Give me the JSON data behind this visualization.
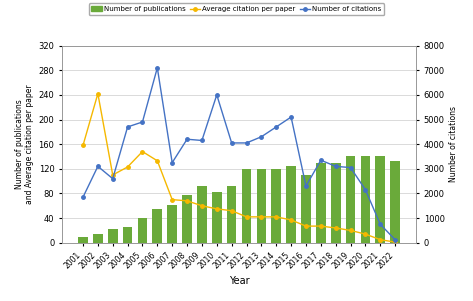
{
  "years": [
    2001,
    2002,
    2003,
    2004,
    2005,
    2006,
    2007,
    2008,
    2009,
    2010,
    2011,
    2012,
    2013,
    2014,
    2015,
    2016,
    2017,
    2018,
    2019,
    2020,
    2021,
    2022
  ],
  "publications": [
    10,
    14,
    22,
    26,
    40,
    55,
    62,
    78,
    92,
    82,
    92,
    120,
    120,
    120,
    125,
    110,
    130,
    130,
    140,
    140,
    140,
    133
  ],
  "avg_citation": [
    158,
    242,
    110,
    123,
    148,
    133,
    70,
    68,
    60,
    55,
    52,
    42,
    42,
    42,
    37,
    27,
    27,
    24,
    20,
    14,
    5,
    1
  ],
  "num_citations": [
    1850,
    3100,
    2600,
    4700,
    4900,
    7100,
    3250,
    4200,
    4150,
    6000,
    4050,
    4050,
    4300,
    4700,
    5100,
    2300,
    3350,
    3100,
    3050,
    2150,
    750,
    120
  ],
  "bar_color": "#6aaa3a",
  "avg_citation_color": "#f5b800",
  "num_citations_color": "#4472c4",
  "left_ylim": [
    0,
    320
  ],
  "right_ylim": [
    0,
    8000
  ],
  "left_yticks": [
    0,
    40,
    80,
    120,
    160,
    200,
    240,
    280,
    320
  ],
  "right_yticks": [
    0,
    1000,
    2000,
    3000,
    4000,
    5000,
    6000,
    7000,
    8000
  ],
  "xlabel": "Year",
  "ylabel_left": "Number of publications\nand Average citation per paper",
  "ylabel_right": "Number of citations",
  "legend_labels": [
    "Number of publications",
    "Average citation per paper",
    "Number of citations"
  ],
  "grid_color": "#cccccc",
  "scale_factor": 25.0
}
